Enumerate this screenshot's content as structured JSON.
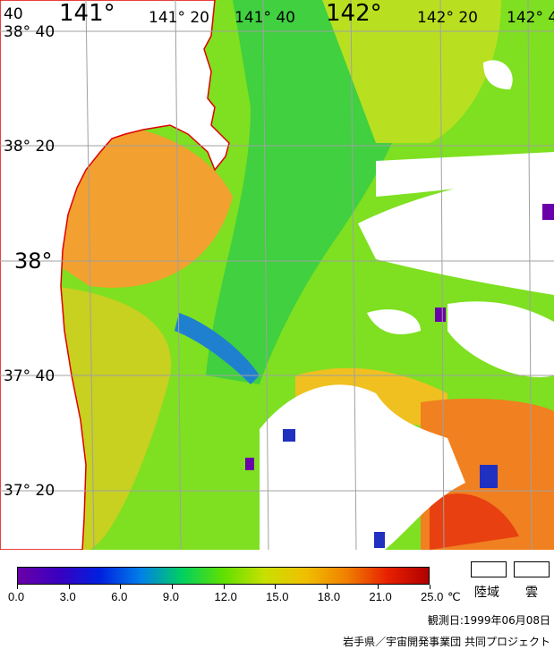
{
  "map": {
    "lon_labels": [
      {
        "text": "40",
        "size": "sm"
      },
      {
        "text": "141°",
        "size": "big"
      },
      {
        "text": "141° 20",
        "size": "sm"
      },
      {
        "text": "141° 40",
        "size": "sm"
      },
      {
        "text": "142°",
        "size": "big"
      },
      {
        "text": "142° 20",
        "size": "sm"
      },
      {
        "text": "142° 4",
        "size": "sm"
      }
    ],
    "lat_labels": [
      {
        "text": "38° 40",
        "size": "sm"
      },
      {
        "text": "38° 20",
        "size": "sm"
      },
      {
        "text": "38°",
        "size": "big"
      },
      {
        "text": "37° 40",
        "size": "sm"
      },
      {
        "text": "37° 20",
        "size": "sm"
      }
    ],
    "coastline_color": "#e00000",
    "grid_color": "#a0a0a0",
    "land_color": "#ffffff"
  },
  "colorbar": {
    "tick_labels": [
      "0.0",
      "3.0",
      "6.0",
      "9.0",
      "12.0",
      "15.0",
      "18.0",
      "21.0",
      "25.0"
    ],
    "unit": "℃",
    "stops": [
      "#6a00a8",
      "#3a00c0",
      "#0020e0",
      "#0080e8",
      "#00d060",
      "#60e000",
      "#c8e000",
      "#f0c000",
      "#f08000",
      "#e82000",
      "#b00000"
    ]
  },
  "legend": {
    "land_label": "陸域",
    "cloud_label": "雲"
  },
  "footer": {
    "observation_date": "観測日:1999年06月08日",
    "credit": "岩手県／宇宙開発事業団 共同プロジェクト"
  }
}
